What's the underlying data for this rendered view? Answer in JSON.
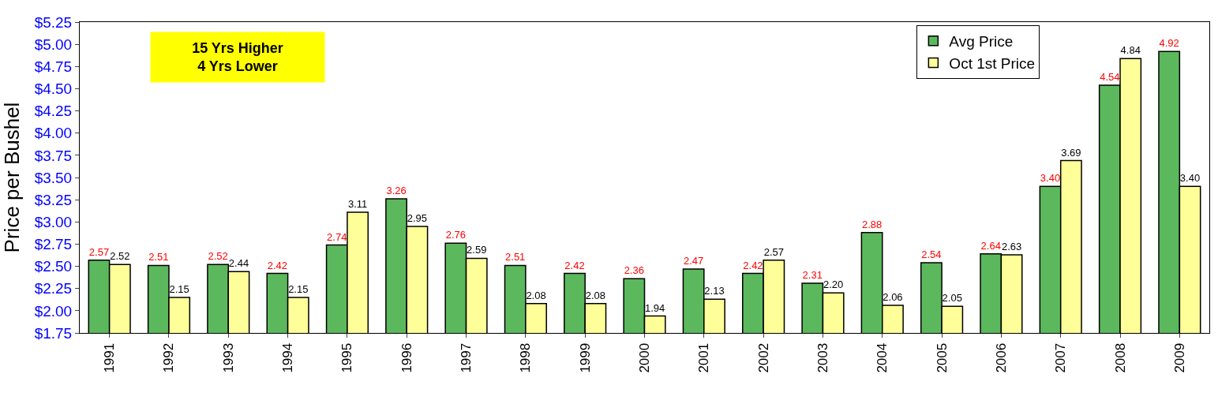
{
  "chart_data": {
    "type": "bar",
    "ylabel": "Price per Bushel",
    "categories": [
      "1991",
      "1992",
      "1993",
      "1994",
      "1995",
      "1996",
      "1997",
      "1998",
      "1999",
      "2000",
      "2001",
      "2002",
      "2003",
      "2004",
      "2005",
      "2006",
      "2007",
      "2008",
      "2009"
    ],
    "series": [
      {
        "name": "Avg Price",
        "color": "#5cb85c",
        "values": [
          2.57,
          2.51,
          2.52,
          2.42,
          2.74,
          3.26,
          2.76,
          2.51,
          2.42,
          2.36,
          2.47,
          2.42,
          2.31,
          2.88,
          2.54,
          2.64,
          3.4,
          4.54,
          4.92
        ],
        "value_labels": [
          "2.57",
          "2.51",
          "2.52",
          "2.42",
          "2.74",
          "3.26",
          "2.76",
          "2.51",
          "2.42",
          "2.36",
          "2.47",
          "2.42",
          "2.31",
          "2.88",
          "2.54",
          "2.64",
          "3.40",
          "4.54",
          "4.92"
        ]
      },
      {
        "name": "Oct 1st Price",
        "color": "#ffff99",
        "values": [
          2.52,
          2.15,
          2.44,
          2.15,
          3.11,
          2.95,
          2.59,
          2.08,
          2.08,
          1.94,
          2.13,
          2.57,
          2.2,
          2.06,
          2.05,
          2.63,
          3.69,
          4.84,
          3.4
        ],
        "value_labels": [
          "2.52",
          "2.15",
          "2.44",
          "2.15",
          "3.11",
          "2.95",
          "2.59",
          "2.08",
          "2.08",
          "1.94",
          "2.13",
          "2.57",
          "2.20",
          "2.06",
          "2.05",
          "2.63",
          "3.69",
          "4.84",
          "3.40"
        ]
      }
    ],
    "ylim": [
      1.75,
      5.25
    ],
    "yticks": [
      {
        "value": 1.75,
        "label": "$1.75"
      },
      {
        "value": 2.0,
        "label": "$2.00"
      },
      {
        "value": 2.25,
        "label": "$2.25"
      },
      {
        "value": 2.5,
        "label": "$2.50"
      },
      {
        "value": 2.75,
        "label": "$2.75"
      },
      {
        "value": 3.0,
        "label": "$3.00"
      },
      {
        "value": 3.25,
        "label": "$3.25"
      },
      {
        "value": 3.5,
        "label": "$3.50"
      },
      {
        "value": 3.75,
        "label": "$3.75"
      },
      {
        "value": 4.0,
        "label": "$4.00"
      },
      {
        "value": 4.25,
        "label": "$4.25"
      },
      {
        "value": 4.5,
        "label": "$4.50"
      },
      {
        "value": 4.75,
        "label": "$4.75"
      },
      {
        "value": 5.0,
        "label": "$5.00"
      },
      {
        "value": 5.25,
        "label": "$5.25"
      }
    ],
    "annotations": [
      "15 Yrs Higher\n4 Yrs Lower"
    ],
    "legend": "top right"
  }
}
